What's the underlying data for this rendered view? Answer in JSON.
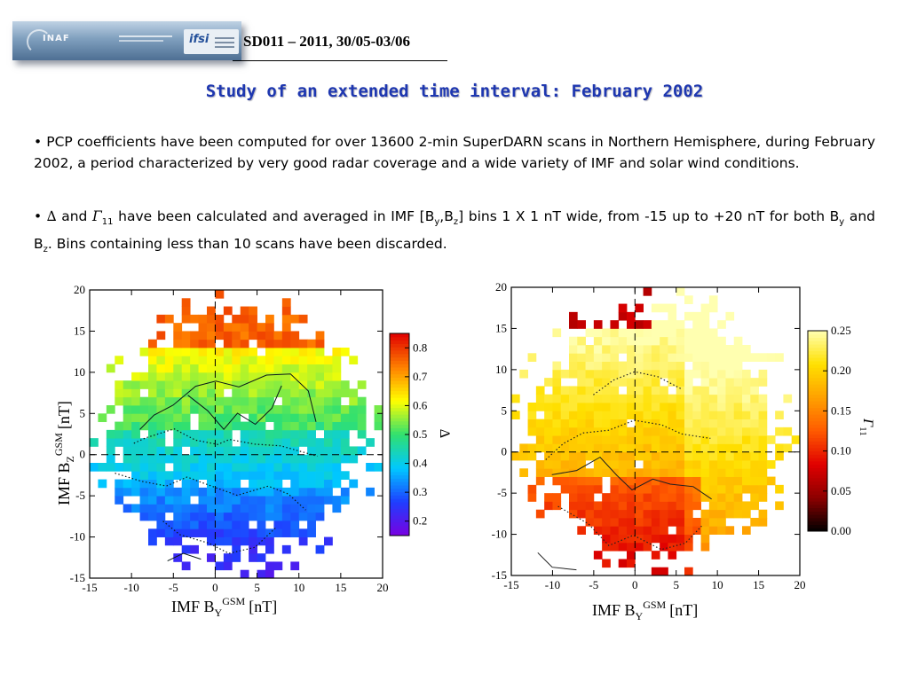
{
  "header": {
    "logo_inaf": "INAF",
    "logo_ifsi": "ifsi",
    "code": "SD011 – 2011, 30/05-03/06"
  },
  "title": "Study of an extended time interval: February 2002",
  "bullets": {
    "b1": "PCP coefficients have been computed for over 13600 2-min SuperDARN scans in Northern Hemisphere, during February 2002, a period characterized by very good radar coverage and a wide variety of IMF and solar wind conditions.",
    "b2_delta": "∆",
    "b2_and": " and ",
    "b2_gamma": "Γ",
    "b2_gamma_sub": "11",
    "b2_t1": " have been calculated and averaged in IMF [B",
    "b2_sub_y1": "y",
    "b2_t2": ",B",
    "b2_sub_z1": "z",
    "b2_t3": "] bins 1 X 1 nT wide, from -15 up to +20 nT for both B",
    "b2_sub_y2": "y",
    "b2_t4": " and B",
    "b2_sub_z2": "z",
    "b2_t5": ". Bins containing less than 10 scans have been discarded."
  },
  "chart_data": [
    {
      "type": "heatmap",
      "xlabel": "IMF B",
      "xlabel_sub": "Y",
      "xlabel_sup": "GSM",
      "xlabel_unit": "[nT]",
      "ylabel": "IMF B",
      "ylabel_sub": "Z",
      "ylabel_sup": "GSM",
      "ylabel_unit": "[nT]",
      "xlim": [
        -15,
        20
      ],
      "ylim": [
        -15,
        20
      ],
      "xticks": [
        -15,
        -10,
        -5,
        0,
        5,
        10,
        15,
        20
      ],
      "yticks": [
        -15,
        -10,
        -5,
        0,
        5,
        10,
        15,
        20
      ],
      "colorbar": {
        "label": "∆",
        "range": [
          0.15,
          0.85
        ],
        "ticks": [
          "0.2",
          "0.3",
          "0.4",
          "0.5",
          "0.6",
          "0.7",
          "0.8"
        ],
        "colormap": [
          "#7a00e0",
          "#1f3dff",
          "#00c8ff",
          "#30e070",
          "#ffff00",
          "#ff8000",
          "#e00000"
        ]
      }
    },
    {
      "type": "heatmap",
      "xlabel": "IMF B",
      "xlabel_sub": "Y",
      "xlabel_sup": "GSM",
      "xlabel_unit": "[nT]",
      "xlim": [
        -15,
        20
      ],
      "ylim": [
        -15,
        20
      ],
      "xticks": [
        -15,
        -10,
        -5,
        0,
        5,
        10,
        15,
        20
      ],
      "yticks": [
        -15,
        -10,
        -5,
        0,
        5,
        10,
        15,
        20
      ],
      "colorbar": {
        "label": "Γ",
        "label_sub": "11",
        "range": [
          0,
          0.25
        ],
        "ticks": [
          "0.00",
          "0.05",
          "0.10",
          "0.15",
          "0.20",
          "0.25"
        ],
        "colormap": [
          "#000000",
          "#8c0000",
          "#e00000",
          "#ff5a00",
          "#ffa000",
          "#ffe000",
          "#ffffb0"
        ]
      }
    }
  ]
}
